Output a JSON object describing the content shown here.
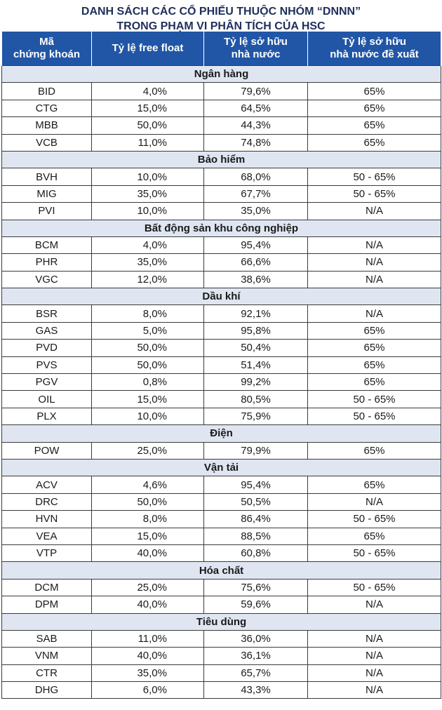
{
  "title": {
    "line1": "DANH SÁCH CÁC CỔ PHIẾU THUỘC NHÓM “DNNN”",
    "line2": "TRONG PHẠM VI PHÂN TÍCH CỦA HSC"
  },
  "headers": {
    "code_l1": "Mã",
    "code_l2": "chứng khoán",
    "free_float": "Tỷ lệ free float",
    "state_own_l1": "Tỷ lệ sở hữu",
    "state_own_l2": "nhà nước",
    "proposed_l1": "Tỷ lệ sở hữu",
    "proposed_l2": "nhà nước đề xuất"
  },
  "groups": [
    {
      "name": "Ngân hàng",
      "rows": [
        {
          "code": "BID",
          "ff": "4,0%",
          "own": "79,6%",
          "prop": "65%"
        },
        {
          "code": "CTG",
          "ff": "15,0%",
          "own": "64,5%",
          "prop": "65%"
        },
        {
          "code": "MBB",
          "ff": "50,0%",
          "own": "44,3%",
          "prop": "65%"
        },
        {
          "code": "VCB",
          "ff": "11,0%",
          "own": "74,8%",
          "prop": "65%"
        }
      ]
    },
    {
      "name": "Bảo hiểm",
      "rows": [
        {
          "code": "BVH",
          "ff": "10,0%",
          "own": "68,0%",
          "prop": "50 - 65%"
        },
        {
          "code": "MIG",
          "ff": "35,0%",
          "own": "67,7%",
          "prop": "50 - 65%"
        },
        {
          "code": "PVI",
          "ff": "10,0%",
          "own": "35,0%",
          "prop": "N/A"
        }
      ]
    },
    {
      "name": "Bất động sản khu công nghiệp",
      "rows": [
        {
          "code": "BCM",
          "ff": "4,0%",
          "own": "95,4%",
          "prop": "N/A"
        },
        {
          "code": "PHR",
          "ff": "35,0%",
          "own": "66,6%",
          "prop": "N/A"
        },
        {
          "code": "VGC",
          "ff": "12,0%",
          "own": "38,6%",
          "prop": "N/A"
        }
      ]
    },
    {
      "name": "Dầu khí",
      "rows": [
        {
          "code": "BSR",
          "ff": "8,0%",
          "own": "92,1%",
          "prop": "N/A"
        },
        {
          "code": "GAS",
          "ff": "5,0%",
          "own": "95,8%",
          "prop": "65%"
        },
        {
          "code": "PVD",
          "ff": "50,0%",
          "own": "50,4%",
          "prop": "65%"
        },
        {
          "code": "PVS",
          "ff": "50,0%",
          "own": "51,4%",
          "prop": "65%"
        },
        {
          "code": "PGV",
          "ff": "0,8%",
          "own": "99,2%",
          "prop": "65%"
        },
        {
          "code": "OIL",
          "ff": "15,0%",
          "own": "80,5%",
          "prop": "50 - 65%"
        },
        {
          "code": "PLX",
          "ff": "10,0%",
          "own": "75,9%",
          "prop": "50 - 65%"
        }
      ]
    },
    {
      "name": "Điện",
      "rows": [
        {
          "code": "POW",
          "ff": "25,0%",
          "own": "79,9%",
          "prop": "65%"
        }
      ]
    },
    {
      "name": "Vận tải",
      "rows": [
        {
          "code": "ACV",
          "ff": "4,6%",
          "own": "95,4%",
          "prop": "65%"
        },
        {
          "code": "DRC",
          "ff": "50,0%",
          "own": "50,5%",
          "prop": "N/A"
        },
        {
          "code": "HVN",
          "ff": "8,0%",
          "own": "86,4%",
          "prop": "50 - 65%"
        },
        {
          "code": "VEA",
          "ff": "15,0%",
          "own": "88,5%",
          "prop": "65%"
        },
        {
          "code": "VTP",
          "ff": "40,0%",
          "own": "60,8%",
          "prop": "50 - 65%"
        }
      ]
    },
    {
      "name": "Hóa chất",
      "rows": [
        {
          "code": "DCM",
          "ff": "25,0%",
          "own": "75,6%",
          "prop": "50 - 65%"
        },
        {
          "code": "DPM",
          "ff": "40,0%",
          "own": "59,6%",
          "prop": "N/A"
        }
      ]
    },
    {
      "name": "Tiêu dùng",
      "rows": [
        {
          "code": "SAB",
          "ff": "11,0%",
          "own": "36,0%",
          "prop": "N/A"
        },
        {
          "code": "VNM",
          "ff": "40,0%",
          "own": "36,1%",
          "prop": "N/A"
        },
        {
          "code": "CTR",
          "ff": "35,0%",
          "own": "65,7%",
          "prop": "N/A"
        },
        {
          "code": "DHG",
          "ff": "6,0%",
          "own": "43,3%",
          "prop": "N/A"
        }
      ]
    }
  ]
}
